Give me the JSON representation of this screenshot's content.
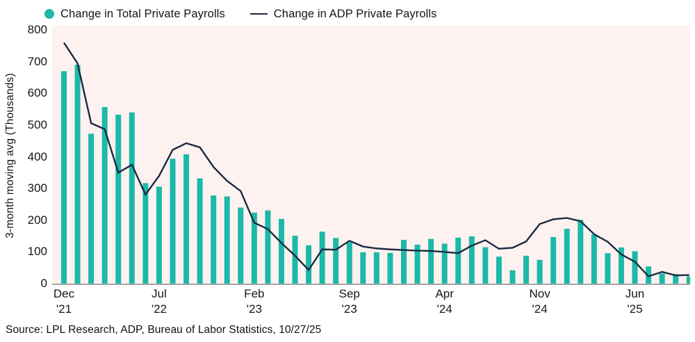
{
  "legend": {
    "total_label": "Change in Total Private Payrolls",
    "adp_label": "Change in ADP Private Payrolls"
  },
  "source": "Source: LPL Research, ADP, Bureau of Labor Statistics, 10/27/25",
  "colors": {
    "bar_teal": "#1cb9a8",
    "line_navy": "#1b2942",
    "panel_pink": "#fdf2f0",
    "axis_gray": "#a6a6a6",
    "text": "#151515"
  },
  "chart_data": {
    "type": "bar",
    "title": "",
    "xlabel": "",
    "ylabel": "3-month moving avg (Thousands)",
    "ylim": [
      0,
      800
    ],
    "y_ticks": [
      800,
      700,
      600,
      500,
      400,
      300,
      200,
      100,
      0
    ],
    "grid": false,
    "legend_position": "top",
    "categories": [
      "Dec '21",
      "Jan '22",
      "Feb '22",
      "Mar '22",
      "Apr '22",
      "May '22",
      "Jun '22",
      "Jul '22",
      "Aug '22",
      "Sep '22",
      "Oct '22",
      "Nov '22",
      "Dec '22",
      "Jan '23",
      "Feb '23",
      "Mar '23",
      "Apr '23",
      "May '23",
      "Jun '23",
      "Jul '23",
      "Aug '23",
      "Sep '23",
      "Oct '23",
      "Nov '23",
      "Dec '23",
      "Jan '24",
      "Feb '24",
      "Mar '24",
      "Apr '24",
      "May '24",
      "Jun '24",
      "Jul '24",
      "Aug '24",
      "Sep '24",
      "Oct '24",
      "Nov '24",
      "Dec '24",
      "Jan '25",
      "Feb '25",
      "Mar '25",
      "Apr '25",
      "May '25",
      "Jun '25",
      "Jul '25",
      "Aug '25",
      "Sep '25",
      "Oct '25"
    ],
    "x_ticks": [
      {
        "line1": "Dec",
        "line2": "'21",
        "month_index": 0
      },
      {
        "line1": "Jul",
        "line2": "'22",
        "month_index": 7
      },
      {
        "line1": "Feb",
        "line2": "'23",
        "month_index": 14
      },
      {
        "line1": "Sep",
        "line2": "'23",
        "month_index": 21
      },
      {
        "line1": "Apr",
        "line2": "'24",
        "month_index": 28
      },
      {
        "line1": "Nov",
        "line2": "'24",
        "month_index": 35
      },
      {
        "line1": "Jun",
        "line2": "'25",
        "month_index": 42
      }
    ],
    "series": [
      {
        "name": "Change in Total Private Payrolls",
        "type": "bar",
        "color": "#1cb9a8",
        "values": [
          670,
          690,
          473,
          557,
          533,
          540,
          317,
          306,
          394,
          408,
          332,
          278,
          275,
          240,
          224,
          231,
          204,
          151,
          121,
          164,
          144,
          130,
          99,
          99,
          97,
          138,
          123,
          141,
          126,
          145,
          149,
          115,
          85,
          42,
          88,
          75,
          147,
          173,
          201,
          155,
          96,
          114,
          102,
          54,
          32,
          30,
          23
        ]
      },
      {
        "name": "Change in ADP Private Payrolls",
        "type": "line",
        "color": "#1b2942",
        "values": [
          760,
          695,
          506,
          487,
          350,
          375,
          281,
          340,
          422,
          443,
          430,
          368,
          324,
          292,
          192,
          172,
          128,
          88,
          43,
          108,
          107,
          135,
          117,
          111,
          108,
          106,
          104,
          103,
          100,
          96,
          120,
          137,
          110,
          113,
          133,
          188,
          203,
          207,
          197,
          156,
          132,
          92,
          69,
          23,
          37,
          26,
          27
        ]
      }
    ]
  }
}
